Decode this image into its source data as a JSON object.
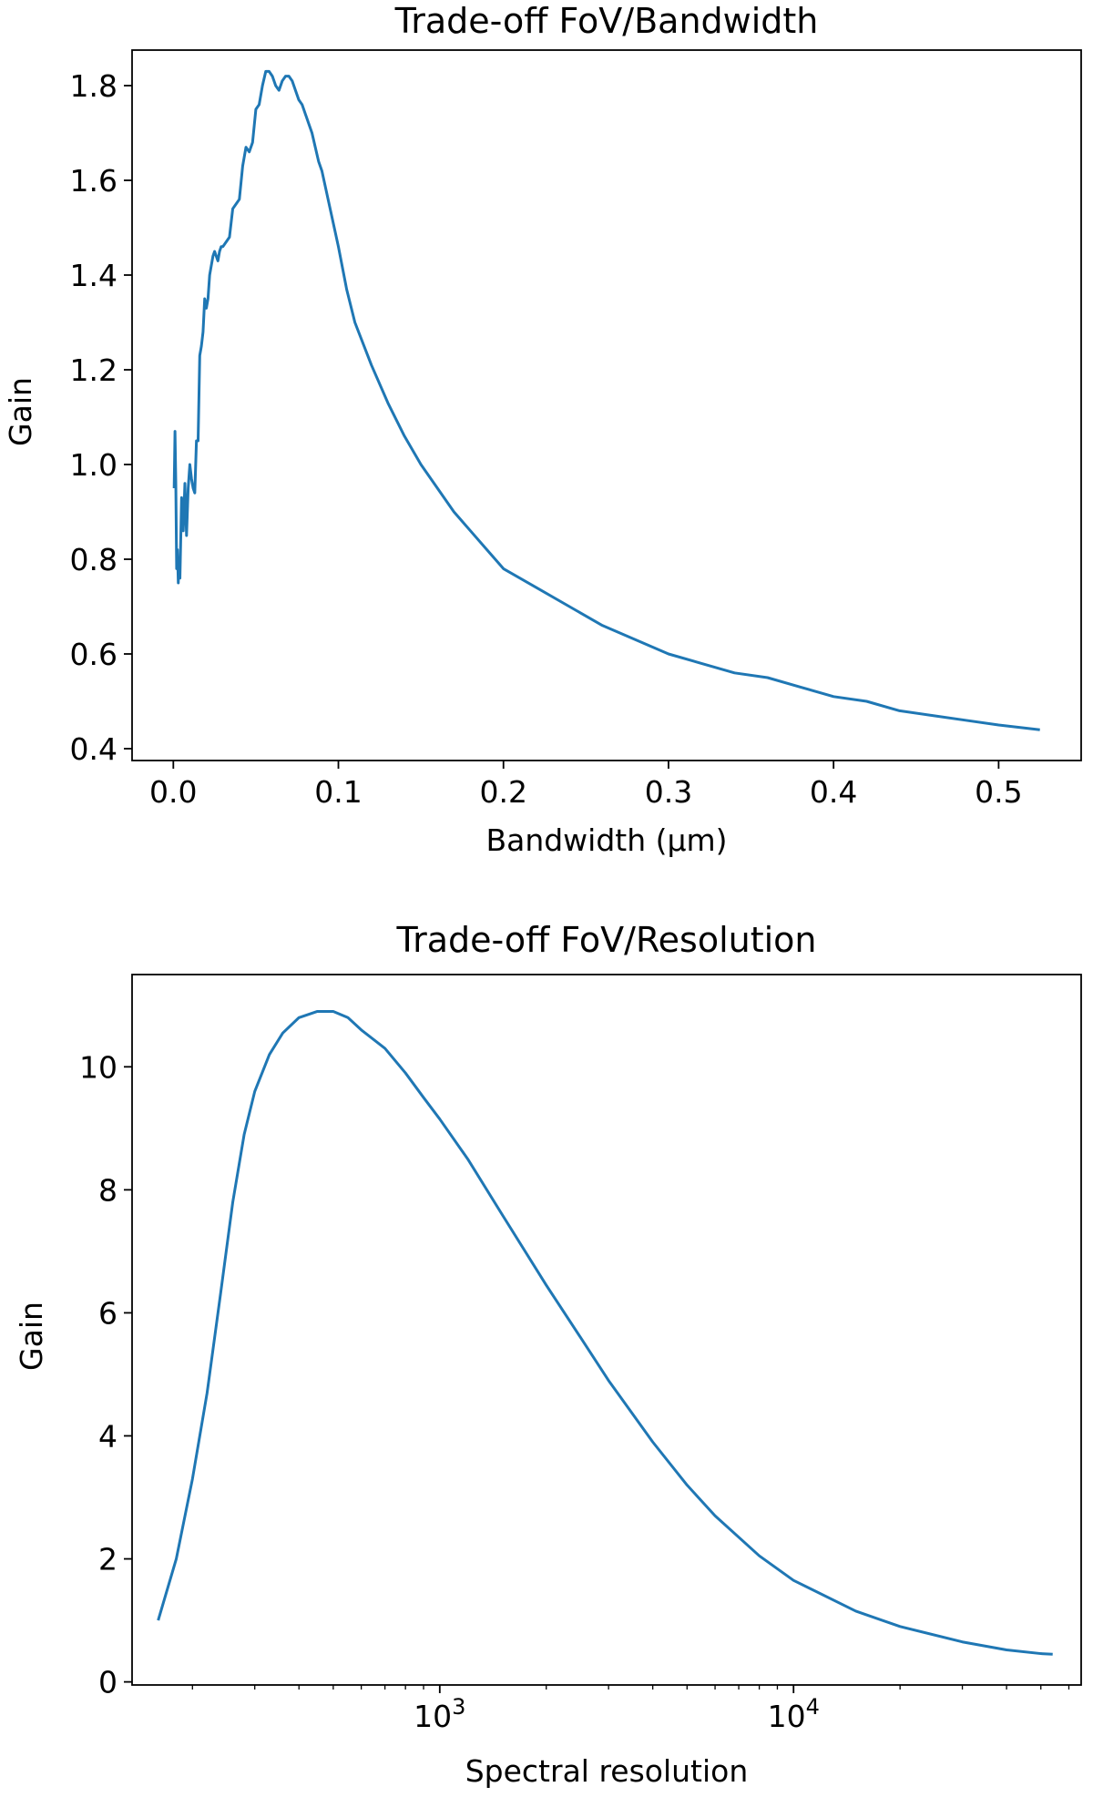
{
  "colors": {
    "line": "#1f77b4",
    "axes": "#000000",
    "background": "#ffffff"
  },
  "chart_data": [
    {
      "type": "line",
      "title": "Trade-off FoV/Bandwidth",
      "xlabel": "Bandwidth (µm)",
      "ylabel": "Gain",
      "xscale": "linear",
      "xlim": [
        -0.025,
        0.55
      ],
      "ylim": [
        0.375,
        1.875
      ],
      "xticks": [
        0.0,
        0.1,
        0.2,
        0.3,
        0.4,
        0.5
      ],
      "xtick_labels": [
        "0.0",
        "0.1",
        "0.2",
        "0.3",
        "0.4",
        "0.5"
      ],
      "yticks": [
        0.4,
        0.6,
        0.8,
        1.0,
        1.2,
        1.4,
        1.6,
        1.8
      ],
      "ytick_labels": [
        "0.4",
        "0.6",
        "0.8",
        "1.0",
        "1.2",
        "1.4",
        "1.6",
        "1.8"
      ],
      "grid": false,
      "series": [
        {
          "x": [
            0.0005,
            0.001,
            0.0015,
            0.002,
            0.0025,
            0.003,
            0.0035,
            0.004,
            0.005,
            0.006,
            0.007,
            0.008,
            0.009,
            0.01,
            0.011,
            0.012,
            0.013,
            0.014,
            0.015,
            0.016,
            0.017,
            0.018,
            0.019,
            0.02,
            0.021,
            0.022,
            0.023,
            0.024,
            0.025,
            0.026,
            0.027,
            0.028,
            0.029,
            0.03,
            0.032,
            0.034,
            0.036,
            0.038,
            0.04,
            0.042,
            0.044,
            0.046,
            0.048,
            0.05,
            0.052,
            0.054,
            0.056,
            0.058,
            0.06,
            0.062,
            0.064,
            0.066,
            0.068,
            0.07,
            0.072,
            0.074,
            0.076,
            0.078,
            0.08,
            0.082,
            0.084,
            0.086,
            0.088,
            0.09,
            0.095,
            0.1,
            0.105,
            0.11,
            0.12,
            0.13,
            0.14,
            0.15,
            0.16,
            0.17,
            0.18,
            0.19,
            0.2,
            0.22,
            0.24,
            0.26,
            0.28,
            0.3,
            0.32,
            0.34,
            0.36,
            0.38,
            0.4,
            0.42,
            0.44,
            0.46,
            0.48,
            0.5,
            0.525
          ],
          "y": [
            0.95,
            1.07,
            0.96,
            0.78,
            0.82,
            0.75,
            0.8,
            0.76,
            0.93,
            0.86,
            0.96,
            0.85,
            0.95,
            1.0,
            0.97,
            0.95,
            0.94,
            1.05,
            1.05,
            1.23,
            1.25,
            1.28,
            1.35,
            1.33,
            1.35,
            1.4,
            1.42,
            1.44,
            1.45,
            1.44,
            1.43,
            1.45,
            1.46,
            1.46,
            1.47,
            1.48,
            1.54,
            1.55,
            1.56,
            1.63,
            1.67,
            1.66,
            1.68,
            1.75,
            1.76,
            1.8,
            1.83,
            1.83,
            1.82,
            1.8,
            1.79,
            1.81,
            1.82,
            1.82,
            1.81,
            1.79,
            1.77,
            1.76,
            1.74,
            1.72,
            1.7,
            1.67,
            1.64,
            1.62,
            1.54,
            1.46,
            1.37,
            1.3,
            1.21,
            1.13,
            1.06,
            1.0,
            0.95,
            0.9,
            0.86,
            0.82,
            0.78,
            0.74,
            0.7,
            0.66,
            0.63,
            0.6,
            0.58,
            0.56,
            0.55,
            0.53,
            0.51,
            0.5,
            0.48,
            0.47,
            0.46,
            0.45,
            0.44
          ]
        }
      ]
    },
    {
      "type": "line",
      "title": "Trade-off FoV/Resolution",
      "xlabel": "Spectral resolution",
      "ylabel": "Gain",
      "xscale": "log",
      "xlim": [
        135,
        65000
      ],
      "ylim": [
        -0.05,
        11.5
      ],
      "xticks": [
        1000,
        10000
      ],
      "xtick_labels": [
        {
          "base": "10",
          "exp": "3"
        },
        {
          "base": "10",
          "exp": "4"
        }
      ],
      "yticks": [
        0,
        2,
        4,
        6,
        8,
        10
      ],
      "ytick_labels": [
        "0",
        "2",
        "4",
        "6",
        "8",
        "10"
      ],
      "grid": false,
      "series": [
        {
          "x": [
            160,
            180,
            200,
            220,
            240,
            260,
            280,
            300,
            330,
            360,
            400,
            450,
            500,
            550,
            600,
            700,
            800,
            900,
            1000,
            1200,
            1500,
            2000,
            2500,
            3000,
            4000,
            5000,
            6000,
            8000,
            10000,
            15000,
            20000,
            30000,
            40000,
            50000,
            54000
          ],
          "y": [
            1.0,
            2.0,
            3.3,
            4.7,
            6.3,
            7.8,
            8.9,
            9.6,
            10.2,
            10.55,
            10.8,
            10.9,
            10.9,
            10.8,
            10.6,
            10.3,
            9.9,
            9.5,
            9.15,
            8.5,
            7.6,
            6.45,
            5.6,
            4.9,
            3.9,
            3.2,
            2.7,
            2.05,
            1.65,
            1.15,
            0.9,
            0.65,
            0.52,
            0.46,
            0.45
          ]
        }
      ]
    }
  ]
}
